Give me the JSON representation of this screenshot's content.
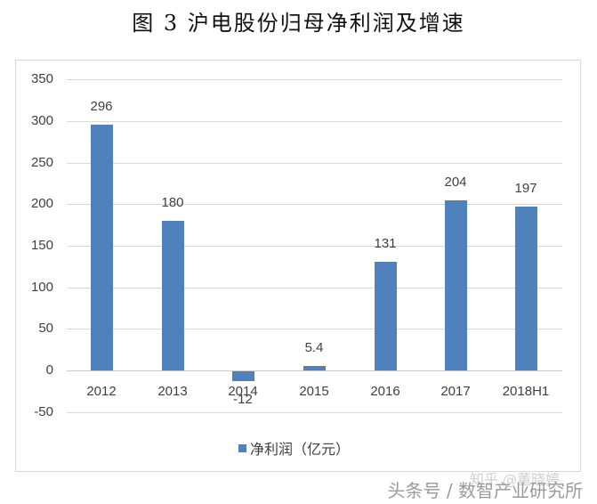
{
  "title": "图 3  沪电股份归母净利润及增速",
  "legend": {
    "label": "净利润（亿元）",
    "color": "#4f81bd"
  },
  "watermark": {
    "primary": "头条号 / 数智产业研究所",
    "secondary": "知乎 @董晓婷"
  },
  "y_ticks": [
    "350",
    "300",
    "250",
    "200",
    "150",
    "100",
    "50",
    "0",
    "-50"
  ],
  "chart_data": {
    "type": "bar",
    "title": "图 3  沪电股份归母净利润及增速",
    "xlabel": "",
    "ylabel": "",
    "categories": [
      "2012",
      "2013",
      "2014",
      "2015",
      "2016",
      "2017",
      "2018H1"
    ],
    "series": [
      {
        "name": "净利润（亿元）",
        "values": [
          296,
          180,
          -12,
          5.4,
          131,
          204,
          197
        ],
        "color": "#4f81bd"
      }
    ],
    "data_labels": [
      "296",
      "180",
      "-12",
      "5.4",
      "131",
      "204",
      "197"
    ],
    "ylim": [
      -50,
      350
    ],
    "yticks": [
      -50,
      0,
      50,
      100,
      150,
      200,
      250,
      300,
      350
    ],
    "grid": true,
    "legend_position": "bottom"
  }
}
